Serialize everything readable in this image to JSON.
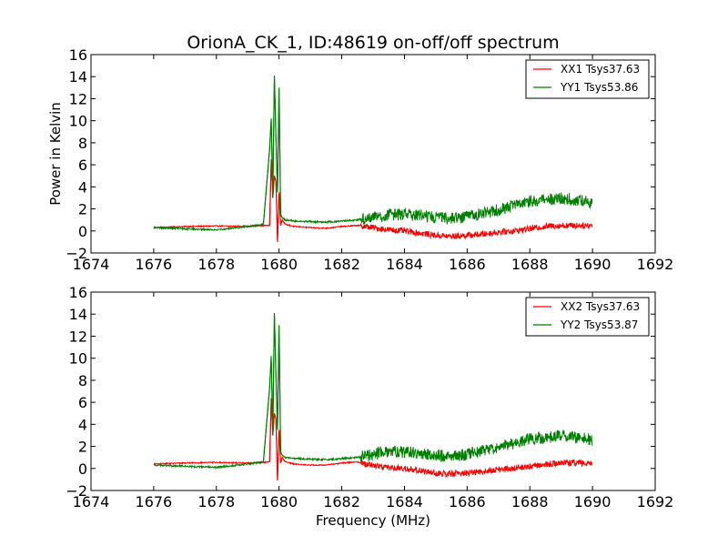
{
  "chart_data": [
    {
      "type": "line",
      "title": "OrionA_CK_1, ID:48619 on-off/off spectrum",
      "xlabel": "",
      "ylabel": "Power in Kelvin",
      "xlim": [
        1674,
        1692
      ],
      "ylim": [
        -2,
        16
      ],
      "xticks": [
        1674,
        1676,
        1678,
        1680,
        1682,
        1684,
        1686,
        1688,
        1690,
        1692
      ],
      "yticks": [
        -2,
        0,
        2,
        4,
        6,
        8,
        10,
        12,
        14,
        16
      ],
      "grid": false,
      "legend_position": "top-right",
      "series": [
        {
          "name": "XX1 Tsys37.63",
          "color": "#ff0000",
          "x": [
            1676,
            1677,
            1678,
            1679,
            1679.5,
            1679.7,
            1679.75,
            1679.8,
            1679.85,
            1679.9,
            1679.95,
            1680,
            1680.05,
            1680.1,
            1680.2,
            1680.5,
            1681,
            1681.5,
            1682,
            1682.5,
            1683,
            1683.5,
            1684,
            1684.5,
            1685,
            1685.5,
            1686,
            1686.5,
            1687,
            1687.5,
            1688,
            1688.5,
            1689,
            1689.5,
            1690
          ],
          "y": [
            0.3,
            0.4,
            0.45,
            0.42,
            0.5,
            0.5,
            6.5,
            3.0,
            5.0,
            4.5,
            -1.0,
            3.5,
            0.5,
            1.0,
            0.6,
            0.4,
            0.3,
            0.25,
            0.4,
            0.5,
            0.3,
            0.1,
            0.0,
            -0.2,
            -0.4,
            -0.5,
            -0.4,
            -0.3,
            -0.1,
            0.0,
            0.2,
            0.4,
            0.5,
            0.5,
            0.5
          ]
        },
        {
          "name": "YY1 Tsys53.86",
          "color": "#008000",
          "x": [
            1676,
            1677,
            1678,
            1679,
            1679.5,
            1679.7,
            1679.75,
            1679.8,
            1679.85,
            1679.9,
            1679.95,
            1680,
            1680.05,
            1680.1,
            1680.2,
            1680.5,
            1681,
            1681.5,
            1682,
            1682.5,
            1683,
            1683.5,
            1684,
            1684.5,
            1685,
            1685.5,
            1686,
            1686.5,
            1687,
            1687.5,
            1688,
            1688.5,
            1689,
            1689.5,
            1690
          ],
          "y": [
            0.3,
            0.2,
            0.1,
            0.4,
            0.6,
            7.5,
            10.2,
            3.0,
            14.1,
            8.5,
            3.5,
            13.0,
            1.5,
            1.2,
            1.0,
            0.9,
            0.85,
            0.8,
            0.9,
            1.0,
            1.3,
            1.5,
            1.5,
            1.4,
            1.2,
            1.1,
            1.3,
            1.6,
            1.9,
            2.3,
            2.7,
            2.8,
            3.0,
            2.8,
            2.6
          ]
        }
      ]
    },
    {
      "type": "line",
      "title": "",
      "xlabel": "Frequency (MHz)",
      "ylabel": "",
      "xlim": [
        1674,
        1692
      ],
      "ylim": [
        -2,
        16
      ],
      "xticks": [
        1674,
        1676,
        1678,
        1680,
        1682,
        1684,
        1686,
        1688,
        1690,
        1692
      ],
      "yticks": [
        -2,
        0,
        2,
        4,
        6,
        8,
        10,
        12,
        14,
        16
      ],
      "grid": false,
      "legend_position": "top-right",
      "series": [
        {
          "name": "XX2 Tsys37.63",
          "color": "#ff0000",
          "x": [
            1676,
            1677,
            1678,
            1679,
            1679.5,
            1679.7,
            1679.75,
            1679.8,
            1679.85,
            1679.9,
            1679.95,
            1680,
            1680.05,
            1680.1,
            1680.2,
            1680.5,
            1681,
            1681.5,
            1682,
            1682.5,
            1683,
            1683.5,
            1684,
            1684.5,
            1685,
            1685.5,
            1686,
            1686.5,
            1687,
            1687.5,
            1688,
            1688.5,
            1689,
            1689.5,
            1690
          ],
          "y": [
            0.4,
            0.5,
            0.55,
            0.5,
            0.55,
            0.6,
            6.4,
            3.0,
            5.0,
            4.5,
            -1.1,
            3.5,
            0.5,
            1.0,
            0.6,
            0.4,
            0.3,
            0.3,
            0.5,
            0.6,
            0.3,
            0.1,
            0.0,
            -0.2,
            -0.4,
            -0.5,
            -0.4,
            -0.3,
            -0.1,
            0.0,
            0.2,
            0.4,
            0.5,
            0.5,
            0.5
          ]
        },
        {
          "name": "YY2 Tsys53.87",
          "color": "#008000",
          "x": [
            1676,
            1677,
            1678,
            1679,
            1679.5,
            1679.7,
            1679.75,
            1679.8,
            1679.85,
            1679.9,
            1679.95,
            1680,
            1680.05,
            1680.1,
            1680.2,
            1680.5,
            1681,
            1681.5,
            1682,
            1682.5,
            1683,
            1683.5,
            1684,
            1684.5,
            1685,
            1685.5,
            1686,
            1686.5,
            1687,
            1687.5,
            1688,
            1688.5,
            1689,
            1689.5,
            1690
          ],
          "y": [
            0.3,
            0.2,
            0.1,
            0.4,
            0.6,
            7.4,
            10.2,
            3.0,
            14.1,
            8.5,
            3.5,
            13.0,
            1.5,
            1.2,
            1.0,
            0.9,
            0.85,
            0.8,
            0.9,
            1.0,
            1.3,
            1.5,
            1.5,
            1.4,
            1.2,
            1.1,
            1.3,
            1.6,
            1.9,
            2.3,
            2.7,
            2.8,
            3.0,
            2.8,
            2.6
          ]
        }
      ]
    }
  ]
}
